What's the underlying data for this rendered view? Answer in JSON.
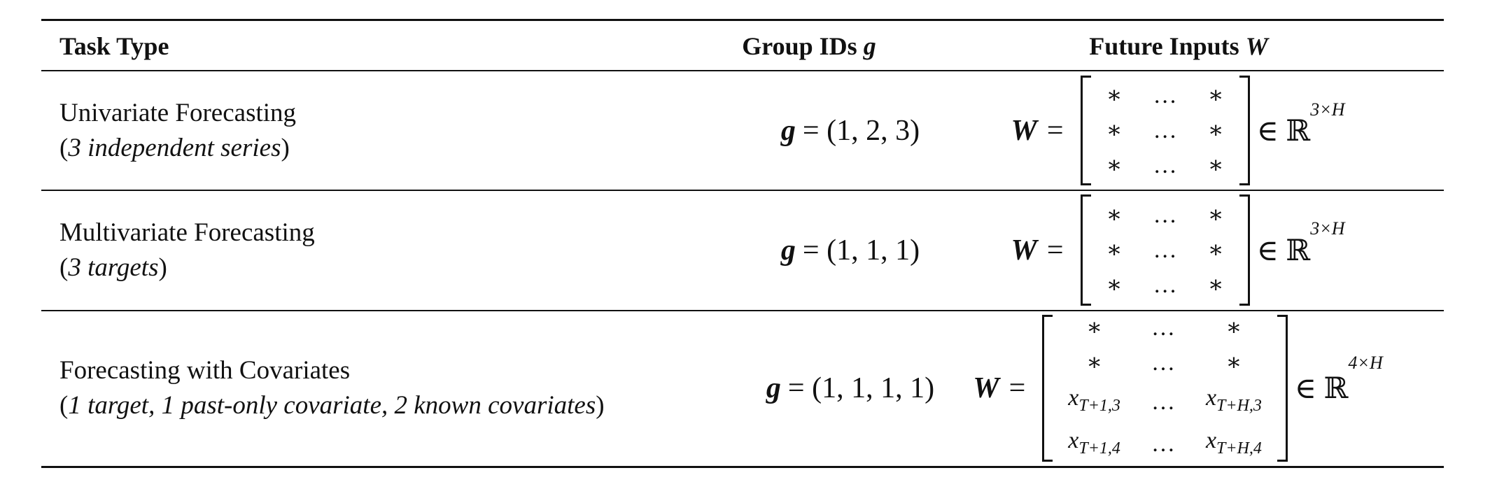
{
  "header": {
    "task": "Task Type",
    "group": {
      "text": "Group IDs",
      "symbol": "g"
    },
    "inputs": {
      "text": "Future Inputs",
      "symbol": "W"
    }
  },
  "rows": [
    {
      "task": "Univariate Forecasting",
      "note": [
        "(",
        "3 independent series",
        ")"
      ],
      "group": {
        "symbol": "g",
        "expr": "= (1, 2, 3)"
      },
      "matrix": {
        "lhs": "W",
        "eq": "=",
        "cells": [
          [
            "∗",
            "…",
            "∗"
          ],
          [
            "∗",
            "…",
            "∗"
          ],
          [
            "∗",
            "…",
            "∗"
          ]
        ],
        "set": "∈ ℝ",
        "dim": "3×H"
      }
    },
    {
      "task": "Multivariate Forecasting",
      "note": [
        "(",
        "3 targets",
        ")"
      ],
      "group": {
        "symbol": "g",
        "expr": "= (1, 1, 1)"
      },
      "matrix": {
        "lhs": "W",
        "eq": "=",
        "cells": [
          [
            "∗",
            "…",
            "∗"
          ],
          [
            "∗",
            "…",
            "∗"
          ],
          [
            "∗",
            "…",
            "∗"
          ]
        ],
        "set": "∈ ℝ",
        "dim": "3×H"
      }
    },
    {
      "task": "Forecasting with Covariates",
      "note": [
        "(",
        "1 target, 1 past-only covariate, 2 known covariates",
        ")"
      ],
      "group": {
        "symbol": "g",
        "expr": "= (1, 1, 1, 1)"
      },
      "matrix": {
        "lhs": "W",
        "eq": "=",
        "cells": [
          [
            "∗",
            "…",
            "∗"
          ],
          [
            "∗",
            "…",
            "∗"
          ],
          [
            {
              "base": "x",
              "sub": "T+1,3"
            },
            "…",
            {
              "base": "x",
              "sub": "T+H,3"
            }
          ],
          [
            {
              "base": "x",
              "sub": "T+1,4"
            },
            "…",
            {
              "base": "x",
              "sub": "T+H,4"
            }
          ]
        ],
        "set": "∈ ℝ",
        "dim": "4×H"
      }
    }
  ]
}
